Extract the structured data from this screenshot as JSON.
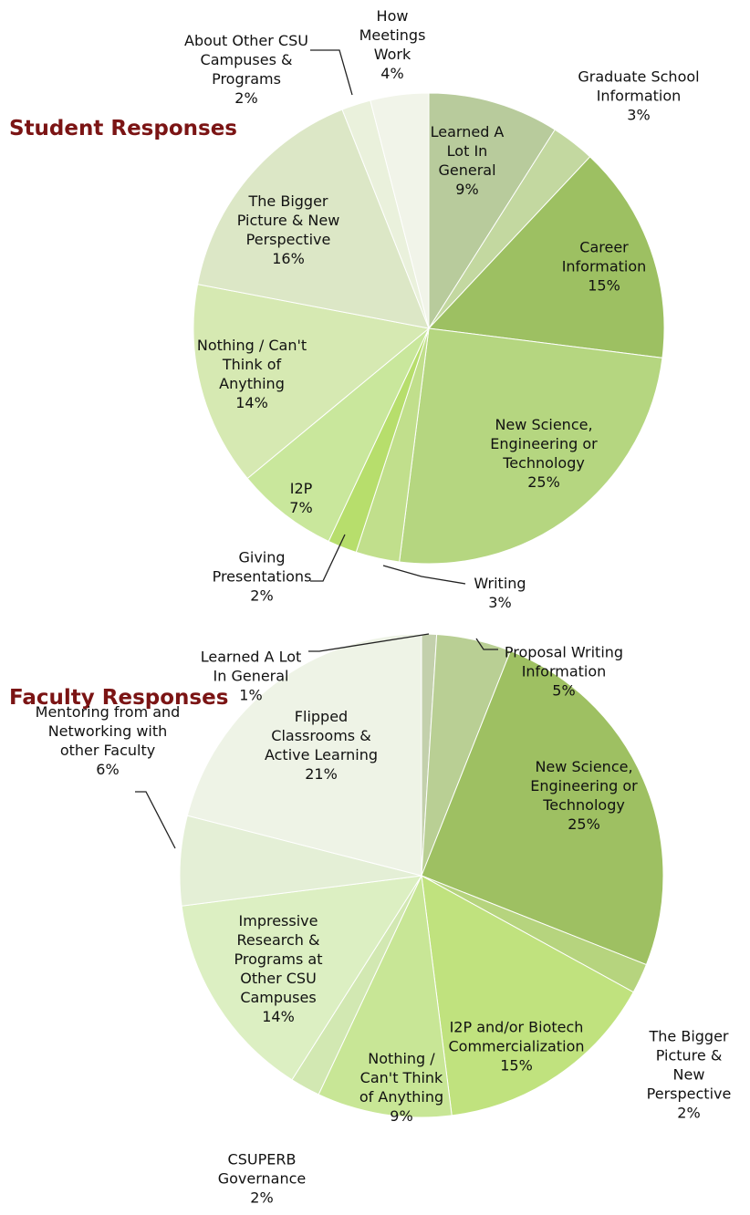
{
  "chart_data": [
    {
      "type": "pie",
      "title": "Student Responses",
      "categories": [
        "Learned A Lot In General",
        "Graduate School Information",
        "Career Information",
        "New Science, Engineering or Technology",
        "Writing",
        "Giving Presentations",
        "I2P",
        "Nothing / Can't Think of Anything",
        "The Bigger Picture & New Perspective",
        "About Other CSU Campuses & Programs",
        "How Meetings Work"
      ],
      "values": [
        9,
        3,
        15,
        25,
        3,
        2,
        7,
        14,
        16,
        2,
        4
      ],
      "value_labels": [
        "9%",
        "3%",
        "15%",
        "25%",
        "3%",
        "2%",
        "7%",
        "14%",
        "16%",
        "2%",
        "4%"
      ],
      "colors": [
        "#b8cb9c",
        "#c3d8a0",
        "#9dc062",
        "#b5d680",
        "#c1df8c",
        "#b7de6c",
        "#c9e79c",
        "#d6e9b2",
        "#dce7c6",
        "#eaf1dc",
        "#f1f4e9"
      ]
    },
    {
      "type": "pie",
      "title": "Faculty Responses",
      "categories": [
        "Learned A Lot In General",
        "Proposal Writing Information",
        "New Science, Engineering or Technology",
        "The Bigger Picture & New Perspective",
        "I2P and/or Biotech Commercialization",
        "Nothing / Can't Think of Anything",
        "CSUPERB Governance",
        "Impressive Research & Programs at Other CSU Campuses",
        "Mentoring from and Networking with other Faculty",
        "Flipped Classrooms & Active Learning"
      ],
      "values": [
        1,
        5,
        25,
        2,
        15,
        9,
        2,
        14,
        6,
        21
      ],
      "value_labels": [
        "1%",
        "5%",
        "25%",
        "2%",
        "15%",
        "9%",
        "2%",
        "14%",
        "6%",
        "21%"
      ],
      "colors": [
        "#c3d0ac",
        "#b9cf94",
        "#9ec062",
        "#b6d47e",
        "#c0e27e",
        "#c8e696",
        "#d2e8b2",
        "#dcefc2",
        "#e4efd6",
        "#eef3e6"
      ]
    }
  ]
}
